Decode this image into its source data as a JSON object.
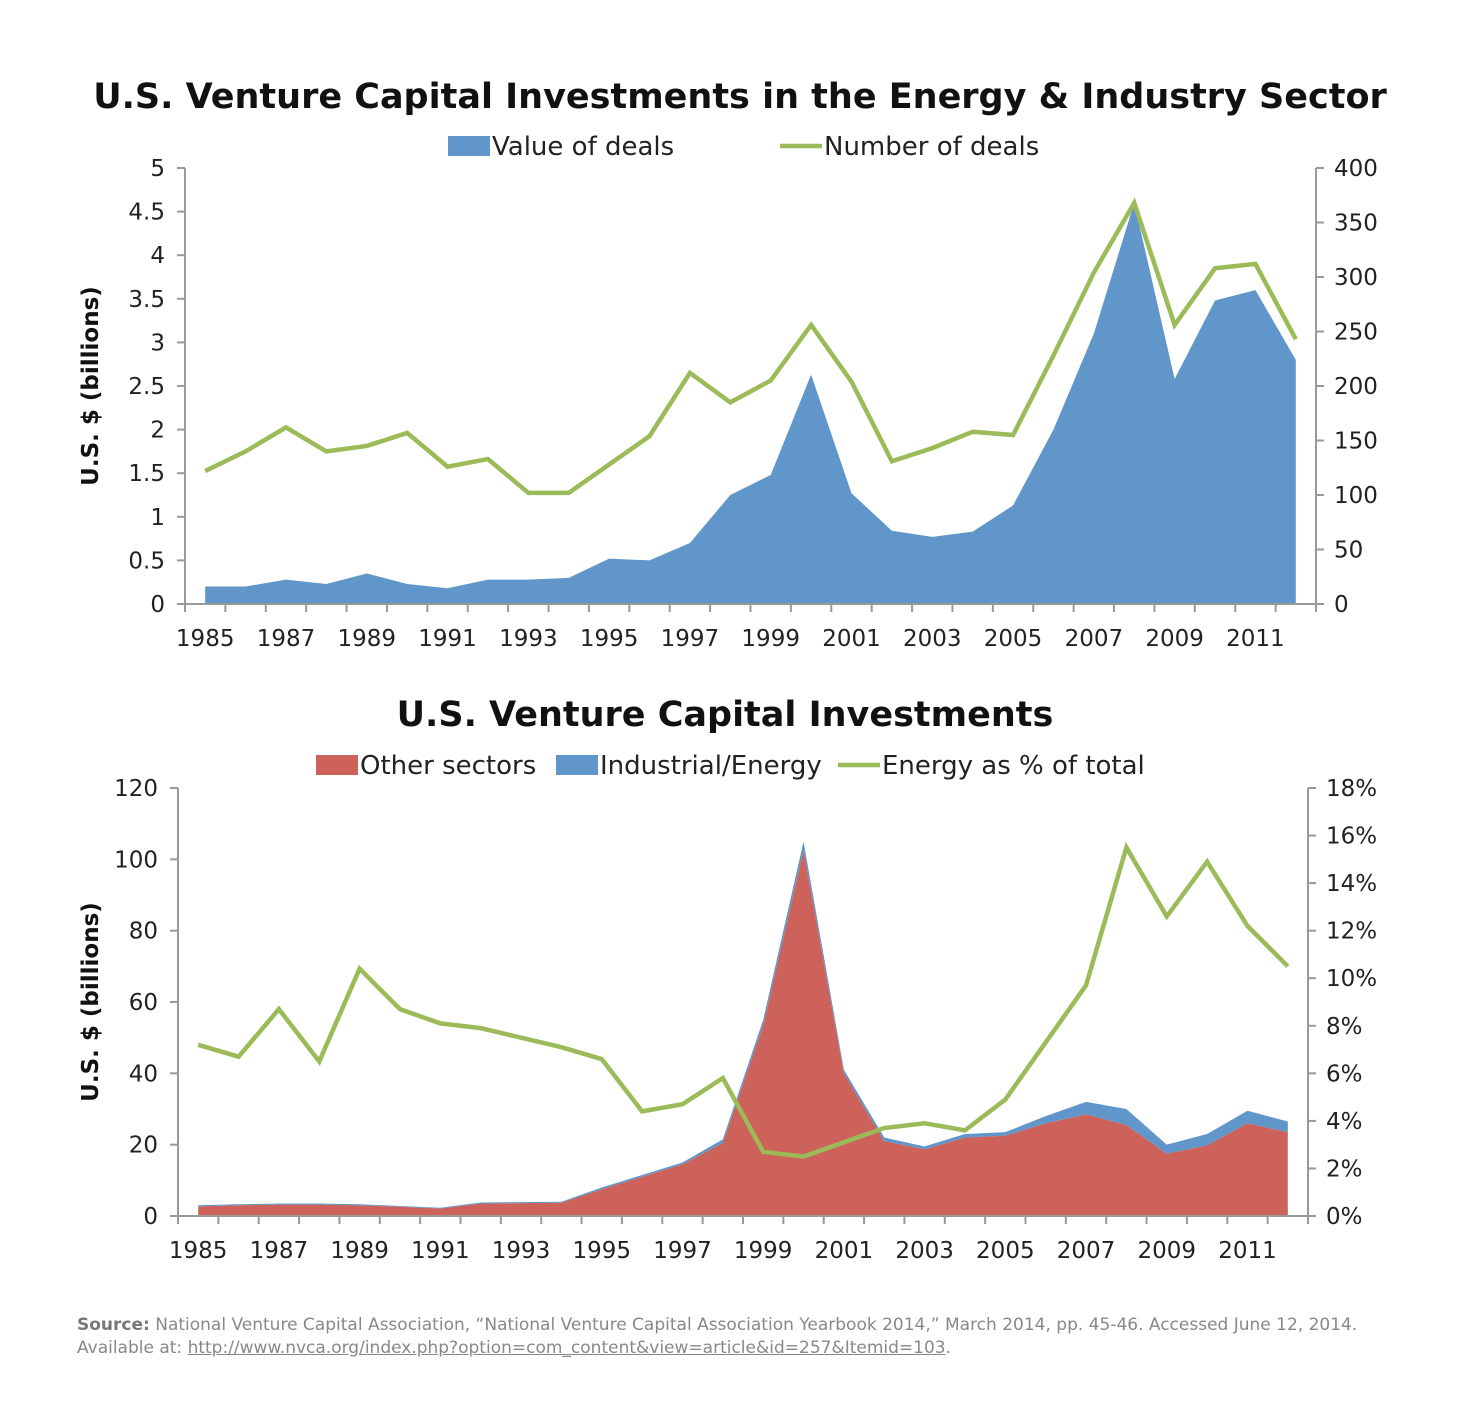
{
  "chart_data": [
    {
      "type": "area",
      "title": "U.S. Venture Capital Investments in the Energy & Industry Sector",
      "ylabel": "U.S. $ (billions)",
      "ylabel_right": "",
      "ylim": [
        0,
        5
      ],
      "ylim_right": [
        0,
        400
      ],
      "yticks": [
        "0",
        "0.5",
        "1",
        "1.5",
        "2",
        "2.5",
        "3",
        "3.5",
        "4",
        "4.5",
        "5"
      ],
      "yticks_right": [
        "0",
        "50",
        "100",
        "150",
        "200",
        "250",
        "300",
        "350",
        "400"
      ],
      "x": [
        1985,
        1986,
        1987,
        1988,
        1989,
        1990,
        1991,
        1992,
        1993,
        1994,
        1995,
        1996,
        1997,
        1998,
        1999,
        2000,
        2001,
        2002,
        2003,
        2004,
        2005,
        2006,
        2007,
        2008,
        2009,
        2010,
        2011,
        2012
      ],
      "xtick_labels": [
        "1985",
        "1987",
        "1989",
        "1991",
        "1993",
        "1995",
        "1997",
        "1999",
        "2001",
        "2003",
        "2005",
        "2007",
        "2009",
        "2011"
      ],
      "grid": false,
      "legend": "top",
      "series": [
        {
          "name": "Value of deals",
          "type": "area",
          "axis": "left",
          "color": "#6096c9",
          "values": [
            0.2,
            0.2,
            0.28,
            0.23,
            0.35,
            0.23,
            0.18,
            0.28,
            0.28,
            0.3,
            0.52,
            0.5,
            0.7,
            1.25,
            1.48,
            2.63,
            1.27,
            0.84,
            0.77,
            0.83,
            1.13,
            2.0,
            3.1,
            4.6,
            2.58,
            3.48,
            3.6,
            2.8
          ]
        },
        {
          "name": "Number of deals",
          "type": "line",
          "axis": "right",
          "color": "#9bbb59",
          "values": [
            122,
            140,
            162,
            140,
            145,
            157,
            126,
            133,
            102,
            102,
            128,
            154,
            212,
            185,
            205,
            256,
            204,
            131,
            143,
            158,
            155,
            228,
            304,
            368,
            256,
            308,
            312,
            243
          ]
        }
      ]
    },
    {
      "type": "area",
      "title": "U.S. Venture Capital Investments",
      "ylabel": "U.S. $ (billions)",
      "ylim": [
        0,
        120
      ],
      "ylim_right": [
        0,
        18
      ],
      "yticks": [
        "0",
        "20",
        "40",
        "60",
        "80",
        "100",
        "120"
      ],
      "yticks_right": [
        "0%",
        "2%",
        "4%",
        "6%",
        "8%",
        "10%",
        "12%",
        "14%",
        "16%",
        "18%"
      ],
      "x": [
        1985,
        1986,
        1987,
        1988,
        1989,
        1990,
        1991,
        1992,
        1993,
        1994,
        1995,
        1996,
        1997,
        1998,
        1999,
        2000,
        2001,
        2002,
        2003,
        2004,
        2005,
        2006,
        2007,
        2008,
        2009,
        2010,
        2011,
        2012
      ],
      "xtick_labels": [
        "1985",
        "1987",
        "1989",
        "1991",
        "1993",
        "1995",
        "1997",
        "1999",
        "2001",
        "2003",
        "2005",
        "2007",
        "2009",
        "2011"
      ],
      "grid": false,
      "legend": "top",
      "stacked": true,
      "series": [
        {
          "name": "Other sectors",
          "type": "area",
          "axis": "left",
          "color": "#cd625b",
          "values": [
            2.7,
            3.0,
            3.2,
            3.2,
            3.0,
            2.6,
            2.1,
            3.5,
            3.6,
            3.7,
            7.5,
            11.0,
            14.5,
            20.5,
            53.5,
            102.5,
            40,
            21,
            18.7,
            22,
            22.5,
            26,
            28.5,
            25.5,
            17.5,
            19.8,
            26,
            23.5
          ]
        },
        {
          "name": "Industrial/Energy",
          "type": "area",
          "axis": "left",
          "color": "#6096c9",
          "values": [
            0.3,
            0.3,
            0.3,
            0.3,
            0.3,
            0.2,
            0.2,
            0.3,
            0.3,
            0.3,
            0.5,
            0.5,
            0.5,
            1.0,
            1.5,
            2.5,
            1.0,
            1.0,
            0.8,
            1.0,
            1.0,
            2.0,
            3.5,
            4.5,
            2.5,
            3.2,
            3.5,
            3.0
          ]
        },
        {
          "name": "Energy as % of total",
          "type": "line",
          "axis": "right",
          "color": "#9bbb59",
          "values": [
            7.2,
            6.7,
            8.7,
            6.5,
            10.4,
            8.7,
            8.1,
            7.9,
            7.5,
            7.1,
            6.6,
            4.4,
            4.7,
            5.8,
            2.7,
            2.5,
            3.1,
            3.7,
            3.9,
            3.6,
            4.9,
            7.3,
            9.7,
            15.5,
            12.6,
            14.9,
            12.2,
            10.5
          ]
        }
      ]
    }
  ],
  "source": {
    "label": "Source:",
    "text": " National Venture Capital Association, “National Venture Capital Association Yearbook 2014,” March 2014, pp. 45-46. Accessed June 12, 2014.",
    "available_label": "Available at: ",
    "link": "http://www.nvca.org/index.php?option=com_content&view=article&id=257&Itemid=103",
    "end": "."
  }
}
